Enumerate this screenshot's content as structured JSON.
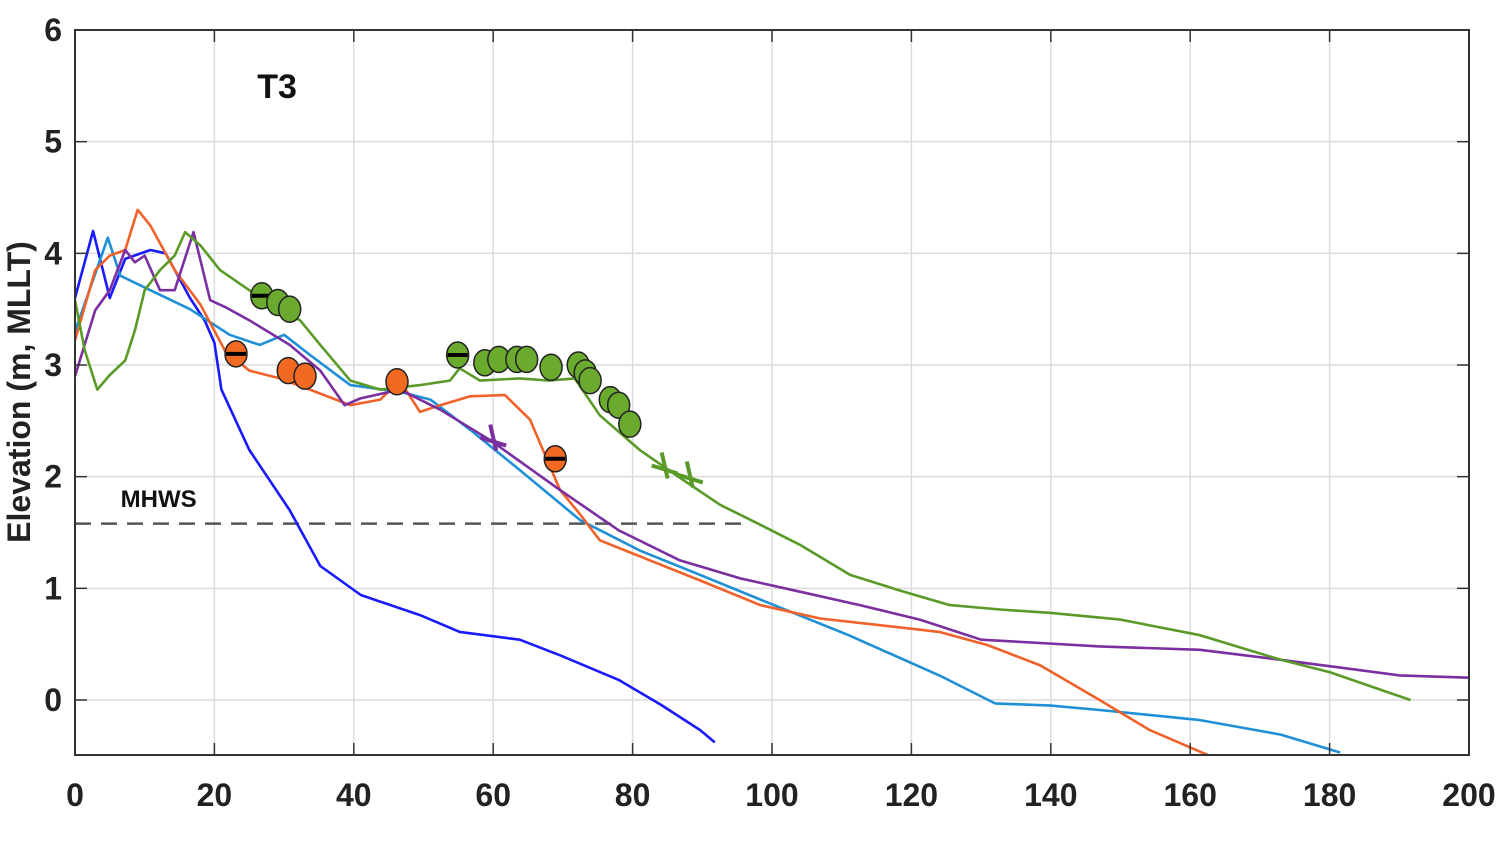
{
  "chart_data": {
    "type": "line",
    "title": "",
    "xlabel": "",
    "ylabel": "Elevation (m, MLLT)",
    "xlim": [
      0,
      200
    ],
    "ylim": [
      -0.5,
      6
    ],
    "xticks": [
      0,
      20,
      40,
      60,
      80,
      100,
      120,
      140,
      160,
      180,
      200
    ],
    "yticks": [
      0,
      1,
      2,
      3,
      4,
      5,
      6
    ],
    "grid": true,
    "annotations": [
      {
        "text": "T3",
        "x": 29,
        "y": 5.5,
        "size": "large"
      },
      {
        "text": "MHWS",
        "x": 12,
        "y": 1.8,
        "size": "small"
      }
    ],
    "reference_lines": [
      {
        "name": "MHWS",
        "y": 1.58,
        "x_range": [
          0,
          97
        ],
        "style": "dashed",
        "color": "#555555"
      }
    ],
    "series": [
      {
        "name": "profile-blue",
        "color": "#1a1aff",
        "points": [
          [
            0,
            3.6
          ],
          [
            2.6,
            4.2
          ],
          [
            5,
            3.6
          ],
          [
            7.2,
            3.95
          ],
          [
            10.8,
            4.03
          ],
          [
            13,
            4.0
          ],
          [
            16.5,
            3.6
          ],
          [
            18.6,
            3.4
          ],
          [
            20,
            3.2
          ],
          [
            21,
            2.78
          ],
          [
            25,
            2.24
          ],
          [
            30.8,
            1.7
          ],
          [
            35.2,
            1.2
          ],
          [
            41,
            0.94
          ],
          [
            49.5,
            0.76
          ],
          [
            55.2,
            0.61
          ],
          [
            63.8,
            0.54
          ],
          [
            69.6,
            0.4
          ],
          [
            78,
            0.18
          ],
          [
            84,
            -0.04
          ],
          [
            89.7,
            -0.27
          ],
          [
            91.8,
            -0.38
          ]
        ]
      },
      {
        "name": "profile-lightblue",
        "color": "#1f8fd6",
        "points": [
          [
            0,
            3.3
          ],
          [
            4.7,
            4.14
          ],
          [
            6.5,
            3.8
          ],
          [
            10.8,
            3.67
          ],
          [
            16.5,
            3.5
          ],
          [
            22.2,
            3.27
          ],
          [
            26.5,
            3.18
          ],
          [
            30,
            3.27
          ],
          [
            33.7,
            3.09
          ],
          [
            39.5,
            2.82
          ],
          [
            46.6,
            2.76
          ],
          [
            51,
            2.69
          ],
          [
            56.7,
            2.42
          ],
          [
            63.8,
            2.06
          ],
          [
            72.5,
            1.61
          ],
          [
            81,
            1.34
          ],
          [
            89.7,
            1.12
          ],
          [
            98.3,
            0.9
          ],
          [
            111,
            0.58
          ],
          [
            124,
            0.22
          ],
          [
            132,
            -0.03
          ],
          [
            140,
            -0.05
          ],
          [
            147,
            -0.09
          ],
          [
            161.4,
            -0.18
          ],
          [
            173,
            -0.31
          ],
          [
            181.5,
            -0.47
          ]
        ]
      },
      {
        "name": "profile-orange",
        "color": "#f0622a",
        "points": [
          [
            0,
            3.22
          ],
          [
            2.9,
            3.85
          ],
          [
            5,
            3.98
          ],
          [
            7.2,
            4.03
          ],
          [
            9,
            4.39
          ],
          [
            10.8,
            4.25
          ],
          [
            14.3,
            3.85
          ],
          [
            18,
            3.54
          ],
          [
            21.5,
            3.13
          ],
          [
            25,
            2.95
          ],
          [
            29.4,
            2.88
          ],
          [
            33.7,
            2.78
          ],
          [
            39.5,
            2.64
          ],
          [
            43.8,
            2.69
          ],
          [
            46.6,
            2.86
          ],
          [
            49.5,
            2.58
          ],
          [
            52.4,
            2.64
          ],
          [
            56.7,
            2.72
          ],
          [
            61.7,
            2.73
          ],
          [
            65.3,
            2.51
          ],
          [
            69.6,
            1.88
          ],
          [
            72.5,
            1.66
          ],
          [
            75.3,
            1.43
          ],
          [
            82.5,
            1.25
          ],
          [
            89.7,
            1.07
          ],
          [
            98.3,
            0.85
          ],
          [
            106.9,
            0.73
          ],
          [
            115.5,
            0.67
          ],
          [
            124,
            0.61
          ],
          [
            131,
            0.49
          ],
          [
            138.5,
            0.31
          ],
          [
            147,
            0
          ],
          [
            154.2,
            -0.27
          ],
          [
            162.8,
            -0.5
          ]
        ]
      },
      {
        "name": "profile-purple",
        "color": "#7b2fa0",
        "points": [
          [
            0,
            2.9
          ],
          [
            2.9,
            3.49
          ],
          [
            5,
            3.67
          ],
          [
            7.2,
            4.03
          ],
          [
            8.6,
            3.92
          ],
          [
            10,
            3.98
          ],
          [
            12.2,
            3.67
          ],
          [
            14.3,
            3.67
          ],
          [
            17,
            4.19
          ],
          [
            19.4,
            3.58
          ],
          [
            21.5,
            3.52
          ],
          [
            25,
            3.4
          ],
          [
            30.8,
            3.18
          ],
          [
            35.2,
            2.95
          ],
          [
            38.7,
            2.64
          ],
          [
            40.9,
            2.7
          ],
          [
            46.6,
            2.78
          ],
          [
            52.4,
            2.6
          ],
          [
            59.5,
            2.33
          ],
          [
            69.6,
            1.88
          ],
          [
            78,
            1.52
          ],
          [
            86.8,
            1.25
          ],
          [
            95.4,
            1.09
          ],
          [
            104,
            0.97
          ],
          [
            112.6,
            0.85
          ],
          [
            121.2,
            0.72
          ],
          [
            130,
            0.54
          ],
          [
            138.5,
            0.51
          ],
          [
            147,
            0.48
          ],
          [
            161.4,
            0.45
          ],
          [
            173,
            0.36
          ],
          [
            181.5,
            0.29
          ],
          [
            190,
            0.22
          ],
          [
            200,
            0.2
          ]
        ]
      },
      {
        "name": "profile-green",
        "color": "#5a9a28",
        "points": [
          [
            0,
            3.58
          ],
          [
            1.4,
            3.13
          ],
          [
            3.2,
            2.78
          ],
          [
            5,
            2.91
          ],
          [
            7.2,
            3.04
          ],
          [
            8.6,
            3.31
          ],
          [
            10,
            3.67
          ],
          [
            12.2,
            3.85
          ],
          [
            14.3,
            3.98
          ],
          [
            15.8,
            4.19
          ],
          [
            18,
            4.07
          ],
          [
            20.8,
            3.85
          ],
          [
            25,
            3.67
          ],
          [
            29.4,
            3.49
          ],
          [
            32.3,
            3.4
          ],
          [
            35.2,
            3.18
          ],
          [
            39.5,
            2.86
          ],
          [
            43.8,
            2.78
          ],
          [
            49.5,
            2.82
          ],
          [
            53.8,
            2.86
          ],
          [
            55.2,
            2.97
          ],
          [
            58.1,
            2.86
          ],
          [
            63.8,
            2.88
          ],
          [
            68,
            2.86
          ],
          [
            71.7,
            2.88
          ],
          [
            75.3,
            2.55
          ],
          [
            81,
            2.24
          ],
          [
            86.8,
            1.99
          ],
          [
            92.5,
            1.75
          ],
          [
            98.3,
            1.57
          ],
          [
            104,
            1.39
          ],
          [
            111.2,
            1.12
          ],
          [
            118.4,
            0.98
          ],
          [
            125.5,
            0.85
          ],
          [
            132.7,
            0.81
          ],
          [
            140,
            0.78
          ],
          [
            150,
            0.72
          ],
          [
            161.4,
            0.58
          ],
          [
            173,
            0.36
          ],
          [
            180,
            0.25
          ],
          [
            191.6,
            0
          ]
        ]
      }
    ],
    "markers": [
      {
        "series": "profile-green",
        "shape": "circle-bar",
        "color": "#6aaa2e",
        "x": 26.8,
        "y": 3.62
      },
      {
        "series": "profile-green",
        "shape": "circle",
        "color": "#6aaa2e",
        "x": 29.1,
        "y": 3.56
      },
      {
        "series": "profile-green",
        "shape": "circle",
        "color": "#6aaa2e",
        "x": 30.8,
        "y": 3.5
      },
      {
        "series": "profile-green",
        "shape": "circle-bar",
        "color": "#6aaa2e",
        "x": 54.9,
        "y": 3.09
      },
      {
        "series": "profile-green",
        "shape": "circle",
        "color": "#6aaa2e",
        "x": 58.8,
        "y": 3.02
      },
      {
        "series": "profile-green",
        "shape": "circle",
        "color": "#6aaa2e",
        "x": 60.8,
        "y": 3.05
      },
      {
        "series": "profile-green",
        "shape": "circle",
        "color": "#6aaa2e",
        "x": 63.4,
        "y": 3.05
      },
      {
        "series": "profile-green",
        "shape": "circle",
        "color": "#6aaa2e",
        "x": 64.8,
        "y": 3.05
      },
      {
        "series": "profile-green",
        "shape": "circle",
        "color": "#6aaa2e",
        "x": 68.3,
        "y": 2.98
      },
      {
        "series": "profile-green",
        "shape": "circle",
        "color": "#6aaa2e",
        "x": 72.2,
        "y": 3.0
      },
      {
        "series": "profile-green",
        "shape": "circle",
        "color": "#6aaa2e",
        "x": 73.2,
        "y": 2.93
      },
      {
        "series": "profile-green",
        "shape": "circle",
        "color": "#6aaa2e",
        "x": 73.9,
        "y": 2.86
      },
      {
        "series": "profile-green",
        "shape": "circle",
        "color": "#6aaa2e",
        "x": 76.8,
        "y": 2.69
      },
      {
        "series": "profile-green",
        "shape": "circle",
        "color": "#6aaa2e",
        "x": 78.0,
        "y": 2.64
      },
      {
        "series": "profile-green",
        "shape": "circle",
        "color": "#6aaa2e",
        "x": 79.6,
        "y": 2.47
      },
      {
        "series": "profile-orange",
        "shape": "circle-bar",
        "color": "#f26a21",
        "x": 23.1,
        "y": 3.1
      },
      {
        "series": "profile-orange",
        "shape": "circle",
        "color": "#f26a21",
        "x": 30.6,
        "y": 2.95
      },
      {
        "series": "profile-orange",
        "shape": "circle",
        "color": "#f26a21",
        "x": 33.0,
        "y": 2.9
      },
      {
        "series": "profile-orange",
        "shape": "circle",
        "color": "#f26a21",
        "x": 46.2,
        "y": 2.85
      },
      {
        "series": "profile-orange",
        "shape": "circle-bar",
        "color": "#f26a21",
        "x": 68.9,
        "y": 2.16
      },
      {
        "series": "profile-purple",
        "shape": "cross",
        "color": "#7b2fa0",
        "x": 60.0,
        "y": 2.35
      },
      {
        "series": "profile-green",
        "shape": "cross",
        "color": "#5a9a28",
        "x": 84.6,
        "y": 2.1
      },
      {
        "series": "profile-green",
        "shape": "cross",
        "color": "#5a9a28",
        "x": 88.2,
        "y": 2.02
      }
    ]
  }
}
